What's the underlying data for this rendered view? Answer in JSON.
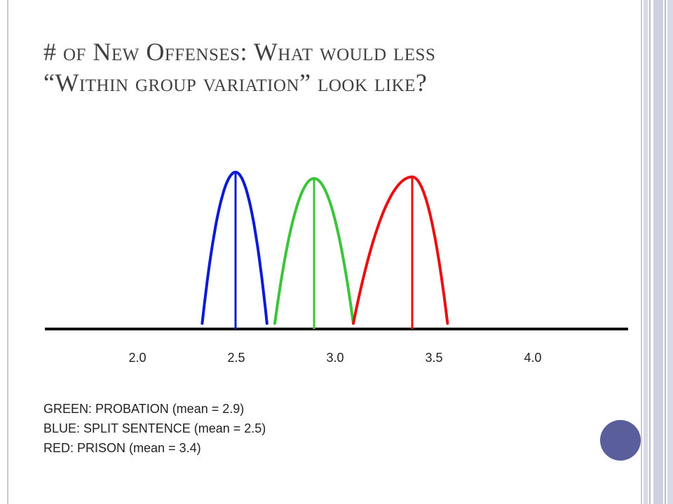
{
  "slide": {
    "title_line1": "# of New Offenses: What would less",
    "title_line2": "“Within group variation” look like?",
    "legend": [
      "GREEN: PROBATION (mean = 2.9)",
      "BLUE: SPLIT SENTENCE (mean = 2.5)",
      "RED: PRISON (mean = 3.4)"
    ]
  },
  "colors": {
    "green": "#3cc43c",
    "blue": "#0a1bd6",
    "red": "#e81010",
    "axis": "#111111",
    "dot": "#5a5f9c"
  },
  "chart_data": {
    "type": "line",
    "title": "",
    "xlabel": "",
    "ylabel": "",
    "x_ticks": [
      "2.0",
      "2.5",
      "3.0",
      "3.5",
      "4.0"
    ],
    "series": [
      {
        "name": "BLUE: SPLIT SENTENCE",
        "mean": 2.5,
        "color": "blue",
        "range": [
          2.33,
          2.66
        ],
        "peak": 1.0
      },
      {
        "name": "GREEN: PROBATION",
        "mean": 2.9,
        "color": "green",
        "range": [
          2.7,
          3.1
        ],
        "peak": 0.96
      },
      {
        "name": "RED: PRISON",
        "mean": 3.4,
        "color": "red",
        "range": [
          3.1,
          3.58
        ],
        "peak": 0.97
      }
    ]
  }
}
